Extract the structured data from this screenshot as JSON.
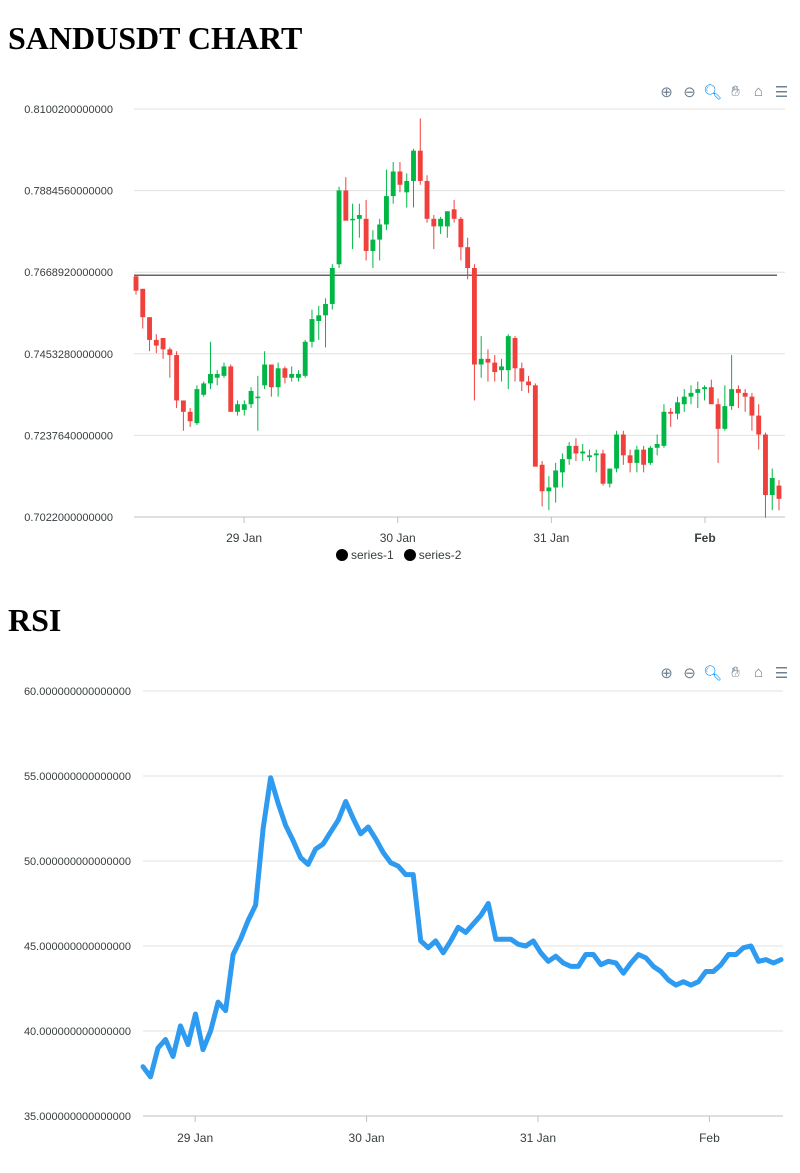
{
  "chart1_title": "SANDUSDT CHART",
  "chart2_title": "RSI",
  "toolbar": {
    "zoom_in_icon": "zoom-in-icon",
    "zoom_out_icon": "zoom-out-icon",
    "zoom_select_icon": "magnifier-icon",
    "pan_icon": "hand-icon",
    "reset_icon": "home-icon",
    "menu_icon": "menu-icon",
    "icon_color": "#6e8192",
    "active_color": "#008ffb"
  },
  "legend": {
    "items": [
      "series-1",
      "series-2"
    ],
    "marker_color": "#000000"
  },
  "chart_data": [
    {
      "type": "candlestick",
      "title": "SANDUSDT CHART",
      "ylim": [
        0.7022,
        0.81002
      ],
      "ytick_labels": [
        "0.8100200000000",
        "0.7884560000000",
        "0.7668920000000",
        "0.7453280000000",
        "0.7237640000000",
        "0.7022000000000"
      ],
      "xtick_labels": [
        "29 Jan",
        "30 Jan",
        "31 Jan",
        "Feb"
      ],
      "x_range_hours": [
        -17.2,
        84.5
      ],
      "reference_line": {
        "name": "series-2",
        "value": 0.7661,
        "color": "#333333"
      },
      "up_color": "#00b746",
      "down_color": "#ef403c",
      "grid": true,
      "legend_position": "bottom-center",
      "series": [
        {
          "name": "series-1",
          "candles_ohlc": [
            [
              0.7658,
              0.766,
              0.761,
              0.762
            ],
            [
              0.7625,
              0.7625,
              0.752,
              0.755
            ],
            [
              0.755,
              0.755,
              0.746,
              0.749
            ],
            [
              0.749,
              0.7505,
              0.7455,
              0.7475
            ],
            [
              0.7495,
              0.7495,
              0.744,
              0.7465
            ],
            [
              0.7465,
              0.747,
              0.739,
              0.745
            ],
            [
              0.745,
              0.746,
              0.731,
              0.733
            ],
            [
              0.733,
              0.733,
              0.725,
              0.73
            ],
            [
              0.73,
              0.731,
              0.726,
              0.7275
            ],
            [
              0.727,
              0.737,
              0.7265,
              0.736
            ],
            [
              0.7345,
              0.738,
              0.734,
              0.7375
            ],
            [
              0.7375,
              0.7485,
              0.736,
              0.74
            ],
            [
              0.739,
              0.741,
              0.737,
              0.74
            ],
            [
              0.7395,
              0.743,
              0.739,
              0.742
            ],
            [
              0.742,
              0.7425,
              0.73,
              0.73
            ],
            [
              0.73,
              0.733,
              0.729,
              0.732
            ],
            [
              0.7305,
              0.733,
              0.729,
              0.732
            ],
            [
              0.732,
              0.7365,
              0.731,
              0.7355
            ],
            [
              0.734,
              0.7395,
              0.725,
              0.734
            ],
            [
              0.737,
              0.746,
              0.736,
              0.7425
            ],
            [
              0.7425,
              0.7425,
              0.734,
              0.7365
            ],
            [
              0.7365,
              0.743,
              0.734,
              0.7415
            ],
            [
              0.7415,
              0.742,
              0.7375,
              0.739
            ],
            [
              0.739,
              0.742,
              0.738,
              0.74
            ],
            [
              0.739,
              0.741,
              0.738,
              0.74
            ],
            [
              0.7395,
              0.749,
              0.739,
              0.7485
            ],
            [
              0.7485,
              0.757,
              0.747,
              0.7545
            ],
            [
              0.754,
              0.758,
              0.749,
              0.7555
            ],
            [
              0.7555,
              0.76,
              0.747,
              0.7585
            ],
            [
              0.7585,
              0.769,
              0.757,
              0.768
            ],
            [
              0.769,
              0.7895,
              0.768,
              0.7885
            ],
            [
              0.7885,
              0.792,
              0.781,
              0.7805
            ],
            [
              0.781,
              0.785,
              0.773,
              0.781
            ],
            [
              0.781,
              0.785,
              0.776,
              0.782
            ],
            [
              0.781,
              0.786,
              0.77,
              0.7725
            ],
            [
              0.7725,
              0.778,
              0.768,
              0.7755
            ],
            [
              0.7755,
              0.781,
              0.77,
              0.7795
            ],
            [
              0.7795,
              0.794,
              0.778,
              0.787
            ],
            [
              0.787,
              0.796,
              0.785,
              0.7935
            ],
            [
              0.7935,
              0.796,
              0.788,
              0.79
            ],
            [
              0.788,
              0.793,
              0.784,
              0.791
            ],
            [
              0.791,
              0.7995,
              0.784,
              0.799
            ],
            [
              0.799,
              0.8075,
              0.79,
              0.791
            ],
            [
              0.791,
              0.7925,
              0.78,
              0.781
            ],
            [
              0.781,
              0.782,
              0.773,
              0.779
            ],
            [
              0.779,
              0.7815,
              0.777,
              0.781
            ],
            [
              0.779,
              0.783,
              0.776,
              0.783
            ],
            [
              0.7835,
              0.786,
              0.78,
              0.781
            ],
            [
              0.781,
              0.7815,
              0.77,
              0.7735
            ],
            [
              0.7735,
              0.776,
              0.765,
              0.768
            ],
            [
              0.768,
              0.769,
              0.733,
              0.7425
            ],
            [
              0.7425,
              0.75,
              0.739,
              0.744
            ],
            [
              0.744,
              0.7465,
              0.738,
              0.743
            ],
            [
              0.743,
              0.745,
              0.738,
              0.7405
            ],
            [
              0.741,
              0.744,
              0.738,
              0.742
            ],
            [
              0.741,
              0.7505,
              0.736,
              0.75
            ],
            [
              0.7495,
              0.75,
              0.738,
              0.7415
            ],
            [
              0.7415,
              0.743,
              0.7355,
              0.738
            ],
            [
              0.738,
              0.7395,
              0.735,
              0.737
            ],
            [
              0.737,
              0.7375,
              0.721,
              0.7155
            ],
            [
              0.716,
              0.717,
              0.705,
              0.709
            ],
            [
              0.709,
              0.713,
              0.704,
              0.71
            ],
            [
              0.71,
              0.7165,
              0.706,
              0.7145
            ],
            [
              0.714,
              0.719,
              0.71,
              0.7175
            ],
            [
              0.7175,
              0.722,
              0.716,
              0.721
            ],
            [
              0.721,
              0.723,
              0.717,
              0.719
            ],
            [
              0.719,
              0.7215,
              0.717,
              0.7195
            ],
            [
              0.718,
              0.72,
              0.717,
              0.7185
            ],
            [
              0.7185,
              0.72,
              0.714,
              0.719
            ],
            [
              0.719,
              0.72,
              0.7105,
              0.711
            ],
            [
              0.711,
              0.715,
              0.71,
              0.715
            ],
            [
              0.715,
              0.725,
              0.714,
              0.724
            ],
            [
              0.724,
              0.725,
              0.716,
              0.7185
            ],
            [
              0.7185,
              0.72,
              0.714,
              0.7165
            ],
            [
              0.7165,
              0.721,
              0.714,
              0.72
            ],
            [
              0.72,
              0.721,
              0.714,
              0.716
            ],
            [
              0.7165,
              0.721,
              0.716,
              0.7205
            ],
            [
              0.7205,
              0.724,
              0.7185,
              0.7215
            ],
            [
              0.721,
              0.732,
              0.7205,
              0.73
            ],
            [
              0.73,
              0.731,
              0.726,
              0.7295
            ],
            [
              0.7295,
              0.734,
              0.728,
              0.7325
            ],
            [
              0.732,
              0.736,
              0.73,
              0.734
            ],
            [
              0.734,
              0.737,
              0.732,
              0.735
            ],
            [
              0.735,
              0.738,
              0.731,
              0.736
            ],
            [
              0.736,
              0.737,
              0.733,
              0.7365
            ],
            [
              0.7365,
              0.7385,
              0.734,
              0.732
            ],
            [
              0.732,
              0.7335,
              0.7165,
              0.7255
            ],
            [
              0.7255,
              0.737,
              0.725,
              0.7315
            ],
            [
              0.7315,
              0.745,
              0.7305,
              0.736
            ],
            [
              0.736,
              0.737,
              0.731,
              0.735
            ],
            [
              0.735,
              0.736,
              0.73,
              0.734
            ],
            [
              0.734,
              0.735,
              0.725,
              0.729
            ],
            [
              0.729,
              0.732,
              0.72,
              0.724
            ],
            [
              0.724,
              0.7245,
              0.702,
              0.708
            ],
            [
              0.708,
              0.715,
              0.704,
              0.7125
            ],
            [
              0.7105,
              0.712,
              0.704,
              0.707
            ]
          ]
        }
      ]
    },
    {
      "type": "line",
      "title": "RSI",
      "ylim": [
        35,
        60
      ],
      "ytick_labels": [
        "60.000000000000000",
        "55.000000000000000",
        "50.000000000000000",
        "45.000000000000000",
        "40.000000000000000",
        "35.000000000000000"
      ],
      "xtick_labels": [
        "29 Jan",
        "30 Jan",
        "31 Jan",
        "Feb"
      ],
      "x_range_hours": [
        -7.3,
        82.3
      ],
      "line_color": "#2e9bf0",
      "grid": true,
      "series": [
        {
          "y": [
            37.9,
            37.3,
            39.0,
            39.5,
            38.5,
            40.3,
            39.2,
            41.0,
            38.9,
            40.0,
            41.7,
            41.2,
            44.5,
            45.4,
            46.5,
            47.4,
            51.9,
            54.9,
            53.4,
            52.1,
            51.2,
            50.2,
            49.8,
            50.7,
            51.0,
            51.7,
            52.4,
            53.5,
            52.5,
            51.6,
            52.0,
            51.3,
            50.5,
            49.9,
            49.7,
            49.2,
            49.2,
            45.3,
            44.9,
            45.3,
            44.6,
            45.3,
            46.1,
            45.8,
            46.3,
            46.8,
            47.5,
            45.4,
            45.4,
            45.4,
            45.1,
            45.0,
            45.3,
            44.6,
            44.1,
            44.4,
            44.0,
            43.8,
            43.8,
            44.5,
            44.5,
            43.9,
            44.1,
            44.0,
            43.4,
            44.0,
            44.5,
            44.3,
            43.8,
            43.5,
            43.0,
            42.7,
            42.9,
            42.7,
            42.9,
            43.5,
            43.5,
            43.9,
            44.5,
            44.5,
            44.9,
            45.0,
            44.1,
            44.2,
            44.0,
            44.2
          ]
        }
      ]
    }
  ]
}
